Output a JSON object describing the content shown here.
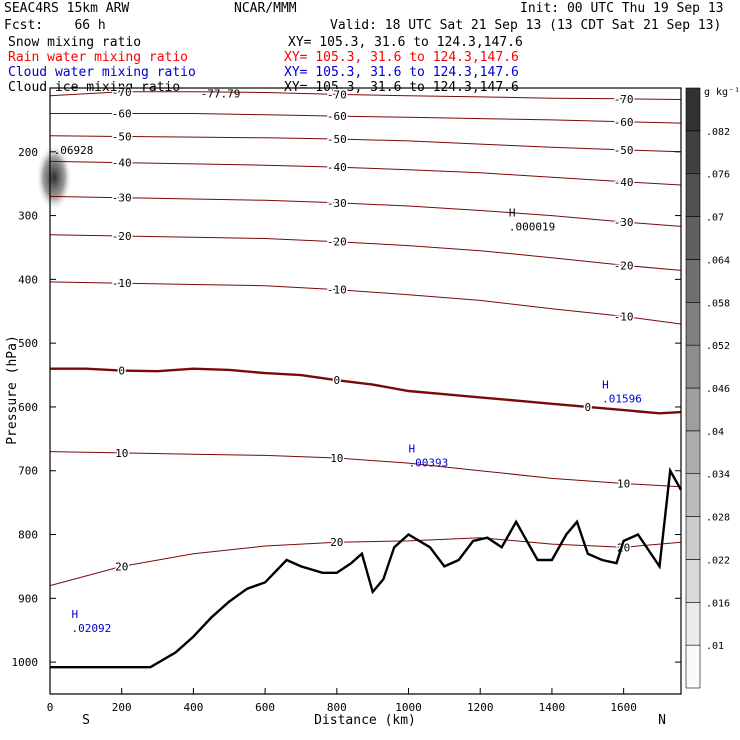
{
  "header": {
    "model": "SEAC4RS 15km ARW",
    "center": "NCAR/MMM",
    "init": "Init: 00 UTC Thu 19 Sep 13",
    "fcst": "Fcst:    66 h",
    "valid": "Valid: 18 UTC Sat 21 Sep 13 (13 CDT Sat 21 Sep 13)",
    "fields": [
      {
        "name": "Snow mixing ratio",
        "xy": "XY= 105.3, 31.6 to 124.3,147.6",
        "color": "#000000"
      },
      {
        "name": "Rain water mixing ratio",
        "xy": "XY= 105.3, 31.6 to 124.3,147.6",
        "color": "#ff0000"
      },
      {
        "name": "Cloud water mixing ratio",
        "xy": "XY= 105.3, 31.6 to 124.3,147.6",
        "color": "#0000cc"
      },
      {
        "name": "Cloud ice mixing ratio",
        "xy": "XY= 105.3, 31.6 to 124.3,147.6",
        "color": "#000000"
      }
    ]
  },
  "chart_data": {
    "type": "cross-section",
    "xlabel": "Distance (km)",
    "ylabel": "Pressure (hPa)",
    "xlim": [
      0,
      1760
    ],
    "ylim": [
      1050,
      100
    ],
    "x_ticks": [
      0,
      200,
      400,
      600,
      800,
      1000,
      1200,
      1400,
      1600
    ],
    "y_ticks": [
      200,
      300,
      400,
      500,
      600,
      700,
      800,
      900,
      1000
    ],
    "endpoints": {
      "left": "S",
      "right": "N"
    },
    "colorbar": {
      "unit": "g kg⁻¹",
      "ticks": [
        ".01",
        ".016",
        ".022",
        ".028",
        ".034",
        ".04",
        ".046",
        ".052",
        ".058",
        ".064",
        ".07",
        ".076",
        ".082"
      ]
    },
    "temperature_isotherms": [
      {
        "value": -70,
        "points": [
          [
            0,
            112
          ],
          [
            200,
            106
          ],
          [
            400,
            106
          ],
          [
            600,
            107
          ],
          [
            800,
            110
          ],
          [
            1000,
            112
          ],
          [
            1200,
            114
          ],
          [
            1400,
            116
          ],
          [
            1600,
            117
          ],
          [
            1760,
            118
          ]
        ]
      },
      {
        "value": -60,
        "points": [
          [
            0,
            140
          ],
          [
            200,
            140
          ],
          [
            400,
            140
          ],
          [
            600,
            142
          ],
          [
            800,
            144
          ],
          [
            1000,
            146
          ],
          [
            1200,
            148
          ],
          [
            1400,
            150
          ],
          [
            1600,
            153
          ],
          [
            1760,
            155
          ]
        ]
      },
      {
        "value": -50,
        "points": [
          [
            0,
            175
          ],
          [
            200,
            176
          ],
          [
            400,
            177
          ],
          [
            600,
            178
          ],
          [
            800,
            180
          ],
          [
            1000,
            183
          ],
          [
            1200,
            188
          ],
          [
            1400,
            193
          ],
          [
            1600,
            197
          ],
          [
            1760,
            200
          ]
        ]
      },
      {
        "value": -40,
        "points": [
          [
            0,
            215
          ],
          [
            200,
            217
          ],
          [
            400,
            219
          ],
          [
            600,
            221
          ],
          [
            800,
            224
          ],
          [
            1000,
            228
          ],
          [
            1200,
            233
          ],
          [
            1400,
            240
          ],
          [
            1600,
            247
          ],
          [
            1760,
            252
          ]
        ]
      },
      {
        "value": -30,
        "points": [
          [
            0,
            270
          ],
          [
            200,
            272
          ],
          [
            400,
            274
          ],
          [
            600,
            276
          ],
          [
            800,
            280
          ],
          [
            1000,
            285
          ],
          [
            1200,
            292
          ],
          [
            1400,
            300
          ],
          [
            1600,
            310
          ],
          [
            1760,
            317
          ]
        ]
      },
      {
        "value": -20,
        "points": [
          [
            0,
            330
          ],
          [
            200,
            332
          ],
          [
            400,
            334
          ],
          [
            600,
            336
          ],
          [
            800,
            341
          ],
          [
            1000,
            347
          ],
          [
            1200,
            355
          ],
          [
            1400,
            366
          ],
          [
            1600,
            378
          ],
          [
            1760,
            386
          ]
        ]
      },
      {
        "value": -10,
        "points": [
          [
            0,
            404
          ],
          [
            200,
            406
          ],
          [
            400,
            408
          ],
          [
            600,
            410
          ],
          [
            800,
            416
          ],
          [
            1000,
            424
          ],
          [
            1200,
            433
          ],
          [
            1400,
            446
          ],
          [
            1600,
            458
          ],
          [
            1760,
            470
          ]
        ]
      },
      {
        "value": 0,
        "points": [
          [
            0,
            540
          ],
          [
            100,
            540
          ],
          [
            200,
            543
          ],
          [
            300,
            544
          ],
          [
            400,
            540
          ],
          [
            500,
            542
          ],
          [
            600,
            547
          ],
          [
            700,
            550
          ],
          [
            800,
            558
          ],
          [
            900,
            565
          ],
          [
            1000,
            575
          ],
          [
            1100,
            580
          ],
          [
            1200,
            585
          ],
          [
            1300,
            590
          ],
          [
            1400,
            595
          ],
          [
            1500,
            600
          ],
          [
            1600,
            605
          ],
          [
            1700,
            610
          ],
          [
            1760,
            608
          ]
        ]
      },
      {
        "value": 10,
        "points": [
          [
            0,
            670
          ],
          [
            200,
            672
          ],
          [
            400,
            674
          ],
          [
            600,
            676
          ],
          [
            800,
            680
          ],
          [
            1000,
            688
          ],
          [
            1200,
            700
          ],
          [
            1400,
            712
          ],
          [
            1600,
            720
          ],
          [
            1760,
            725
          ]
        ]
      },
      {
        "value": 20,
        "points": [
          [
            0,
            880
          ],
          [
            200,
            850
          ],
          [
            400,
            830
          ],
          [
            600,
            818
          ],
          [
            800,
            812
          ],
          [
            1000,
            810
          ],
          [
            1200,
            805
          ],
          [
            1400,
            815
          ],
          [
            1600,
            820
          ],
          [
            1760,
            812
          ]
        ]
      }
    ],
    "terrain_pressure": [
      [
        0,
        1008
      ],
      [
        150,
        1008
      ],
      [
        280,
        1008
      ],
      [
        350,
        985
      ],
      [
        400,
        960
      ],
      [
        450,
        930
      ],
      [
        500,
        905
      ],
      [
        550,
        885
      ],
      [
        600,
        875
      ],
      [
        660,
        840
      ],
      [
        700,
        850
      ],
      [
        760,
        860
      ],
      [
        800,
        860
      ],
      [
        840,
        845
      ],
      [
        870,
        830
      ],
      [
        900,
        890
      ],
      [
        930,
        870
      ],
      [
        960,
        820
      ],
      [
        1000,
        800
      ],
      [
        1060,
        820
      ],
      [
        1100,
        850
      ],
      [
        1140,
        840
      ],
      [
        1180,
        810
      ],
      [
        1220,
        805
      ],
      [
        1260,
        820
      ],
      [
        1300,
        780
      ],
      [
        1330,
        810
      ],
      [
        1360,
        840
      ],
      [
        1400,
        840
      ],
      [
        1440,
        800
      ],
      [
        1470,
        780
      ],
      [
        1500,
        830
      ],
      [
        1540,
        840
      ],
      [
        1580,
        845
      ],
      [
        1600,
        810
      ],
      [
        1640,
        800
      ],
      [
        1700,
        850
      ],
      [
        1730,
        700
      ],
      [
        1760,
        730
      ]
    ],
    "maxima_labels": [
      {
        "label": "H",
        "value": ".000019",
        "x": 1280,
        "p": 320,
        "color": "#000000"
      },
      {
        "label": "H",
        "value": ".01596",
        "x": 1540,
        "p": 590,
        "color": "#0000cc"
      },
      {
        "label": "H",
        "value": ".00393",
        "x": 1000,
        "p": 690,
        "color": "#0000cc"
      },
      {
        "label": "H",
        "value": ".02092",
        "x": 60,
        "p": 950,
        "color": "#0000cc"
      },
      {
        "label": "",
        "value": ".06928",
        "x": 10,
        "p": 200,
        "color": "#000000"
      },
      {
        "label": "",
        "value": "-77.79",
        "x": 420,
        "p": 112,
        "color": "#000000"
      }
    ]
  }
}
